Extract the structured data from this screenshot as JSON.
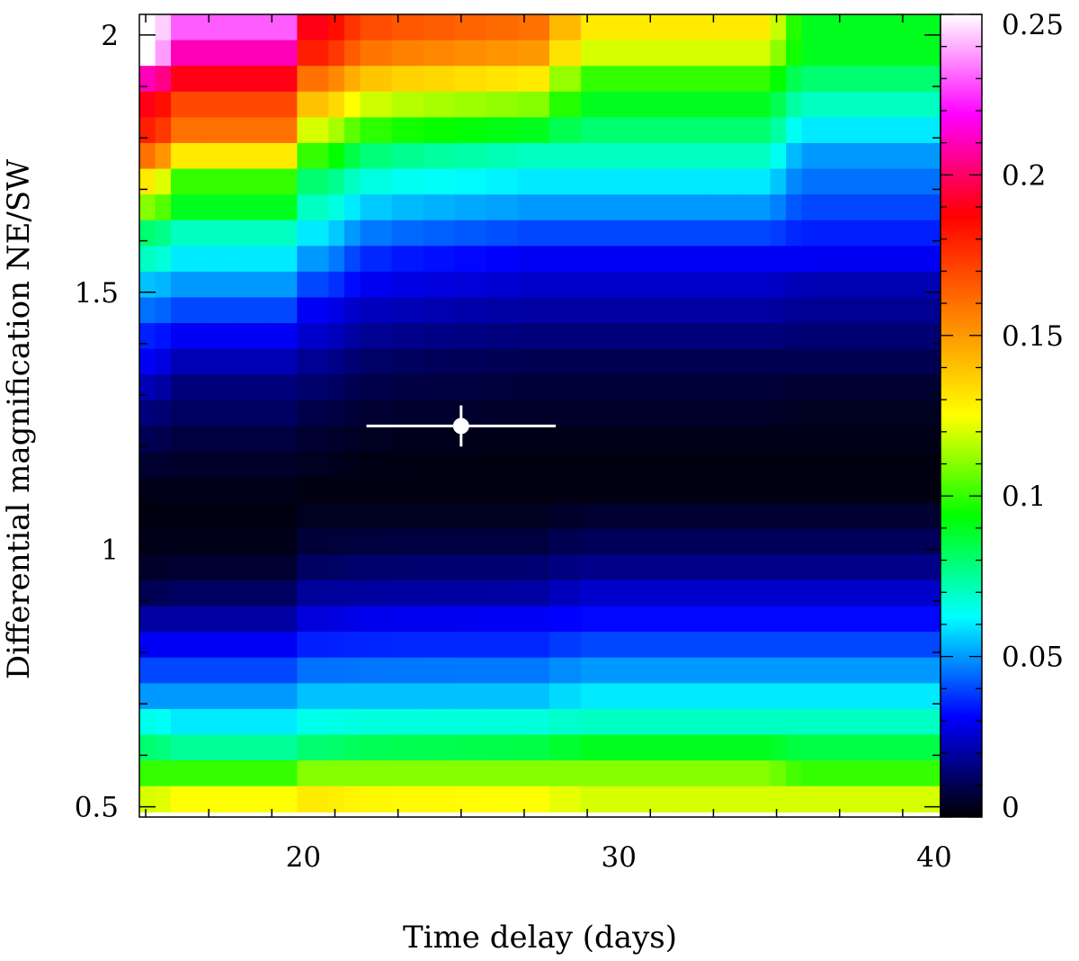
{
  "chart_data": {
    "type": "heatmap",
    "xlabel": "Time delay (days)",
    "ylabel": "Differential magnification NE/SW",
    "xlim": [
      14.8,
      40.2
    ],
    "ylim": [
      0.48,
      2.04
    ],
    "xticks": [
      20,
      30,
      40
    ],
    "xtick_labels": [
      "20",
      "30",
      "40"
    ],
    "yticks": [
      0.5,
      1.0,
      1.5,
      2.0
    ],
    "ytick_labels": [
      "0.5",
      "1",
      "1.5",
      "2"
    ],
    "colorbar": {
      "range": [
        0,
        0.25
      ],
      "ticks": [
        0,
        0.05,
        0.1,
        0.15,
        0.2,
        0.25
      ],
      "tick_labels": [
        "0",
        "0.05",
        "0.1",
        "0.15",
        "0.2",
        "0.25"
      ],
      "colormap": [
        "#000000",
        "#0000ff",
        "#00ffff",
        "#00ff00",
        "#ffff00",
        "#ff8000",
        "#ff0000",
        "#ff00ff",
        "#ffffff"
      ]
    },
    "grid_columns_days": [
      [
        14.8,
        15.3
      ],
      [
        15.3,
        15.8
      ],
      [
        15.8,
        16.8
      ],
      [
        16.8,
        17.8
      ],
      [
        17.8,
        18.8
      ],
      [
        18.8,
        19.8
      ],
      [
        19.8,
        20.8
      ],
      [
        20.8,
        21.3
      ],
      [
        21.3,
        21.8
      ],
      [
        21.8,
        22.8
      ],
      [
        22.8,
        23.8
      ],
      [
        23.8,
        24.8
      ],
      [
        24.8,
        25.8
      ],
      [
        25.8,
        26.8
      ],
      [
        26.8,
        27.8
      ],
      [
        27.8,
        28.8
      ],
      [
        28.8,
        29.8
      ],
      [
        29.8,
        30.8
      ],
      [
        30.8,
        31.8
      ],
      [
        31.8,
        32.8
      ],
      [
        32.8,
        33.8
      ],
      [
        33.8,
        34.8
      ],
      [
        34.8,
        35.3
      ],
      [
        35.3,
        35.8
      ],
      [
        35.8,
        36.8
      ],
      [
        36.8,
        37.8
      ],
      [
        37.8,
        38.8
      ],
      [
        38.8,
        40.2
      ]
    ],
    "grid_rows_start": 2.04,
    "grid_rows_step": 0.05,
    "grid_rows_count": 31,
    "row_profiles": [
      [
        0.25,
        0.23,
        0.19,
        0.16,
        0.13,
        0.09
      ],
      [
        0.25,
        0.21,
        0.18,
        0.15,
        0.12,
        0.09
      ],
      [
        0.21,
        0.19,
        0.16,
        0.13,
        0.1,
        0.08
      ],
      [
        0.19,
        0.17,
        0.14,
        0.11,
        0.09,
        0.07
      ],
      [
        0.18,
        0.16,
        0.12,
        0.09,
        0.08,
        0.06
      ],
      [
        0.16,
        0.13,
        0.1,
        0.07,
        0.07,
        0.05
      ],
      [
        0.13,
        0.1,
        0.08,
        0.06,
        0.06,
        0.045
      ],
      [
        0.11,
        0.09,
        0.07,
        0.05,
        0.05,
        0.04
      ],
      [
        0.08,
        0.07,
        0.06,
        0.04,
        0.04,
        0.035
      ],
      [
        0.07,
        0.06,
        0.05,
        0.03,
        0.03,
        0.03
      ],
      [
        0.055,
        0.05,
        0.04,
        0.025,
        0.025,
        0.022
      ],
      [
        0.045,
        0.04,
        0.03,
        0.02,
        0.02,
        0.018
      ],
      [
        0.035,
        0.03,
        0.025,
        0.015,
        0.015,
        0.014
      ],
      [
        0.03,
        0.022,
        0.018,
        0.01,
        0.01,
        0.01
      ],
      [
        0.022,
        0.015,
        0.013,
        0.007,
        0.007,
        0.006
      ],
      [
        0.015,
        0.012,
        0.009,
        0.005,
        0.005,
        0.004
      ],
      [
        0.01,
        0.008,
        0.006,
        0.003,
        0.003,
        0.003
      ],
      [
        0.006,
        0.005,
        0.004,
        0.002,
        0.002,
        0.002
      ],
      [
        0.003,
        0.003,
        0.002,
        0.002,
        0.002,
        0.002
      ],
      [
        0.002,
        0.002,
        0.004,
        0.004,
        0.006,
        0.006
      ],
      [
        0.003,
        0.003,
        0.007,
        0.008,
        0.011,
        0.011
      ],
      [
        0.005,
        0.006,
        0.012,
        0.014,
        0.017,
        0.017
      ],
      [
        0.01,
        0.012,
        0.019,
        0.02,
        0.025,
        0.025
      ],
      [
        0.02,
        0.02,
        0.027,
        0.03,
        0.032,
        0.032
      ],
      [
        0.03,
        0.03,
        0.035,
        0.036,
        0.04,
        0.04
      ],
      [
        0.04,
        0.04,
        0.045,
        0.046,
        0.05,
        0.05
      ],
      [
        0.05,
        0.05,
        0.055,
        0.055,
        0.06,
        0.06
      ],
      [
        0.065,
        0.06,
        0.065,
        0.067,
        0.07,
        0.07
      ],
      [
        0.08,
        0.075,
        0.08,
        0.085,
        0.09,
        0.085
      ],
      [
        0.1,
        0.1,
        0.11,
        0.11,
        0.11,
        0.1
      ],
      [
        0.12,
        0.125,
        0.13,
        0.125,
        0.12,
        0.12
      ]
    ],
    "column_profile": [
      0,
      0.3,
      1,
      1,
      1,
      1,
      2,
      2.2,
      2.5,
      2.7,
      2.8,
      2.85,
      2.9,
      2.95,
      3,
      3.6,
      4,
      4,
      4,
      4,
      4,
      4,
      4.3,
      4.8,
      5,
      5,
      5,
      5
    ],
    "marker": {
      "x": 25.0,
      "y": 1.24,
      "x_err": [
        22.0,
        28.0
      ],
      "y_err": [
        1.2,
        1.28
      ]
    }
  }
}
